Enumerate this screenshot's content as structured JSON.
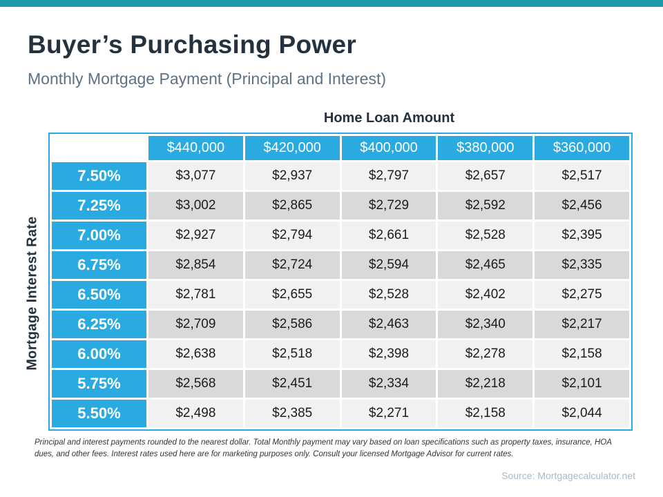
{
  "page": {
    "title": "Buyer’s Purchasing Power",
    "subtitle": "Monthly Mortgage Payment (Principal and Interest)",
    "disclaimer": "Principal and interest payments rounded to the nearest dollar. Total Monthly payment may vary based on loan specifications such as property taxes, insurance, HOA dues, and other fees. Interest rates used here are for marketing purposes only. Consult your licensed Mortgage Advisor for current rates.",
    "source": "Source: Mortgagecalculator.net"
  },
  "chart_data": {
    "type": "table",
    "title": "Home Loan Amount",
    "ylabel": "Mortgage  Interest Rate",
    "columns": [
      "$440,000",
      "$420,000",
      "$400,000",
      "$380,000",
      "$360,000"
    ],
    "rows": [
      {
        "rate": "7.50%",
        "values": [
          "$3,077",
          "$2,937",
          "$2,797",
          "$2,657",
          "$2,517"
        ],
        "green_from": 5
      },
      {
        "rate": "7.25%",
        "values": [
          "$3,002",
          "$2,865",
          "$2,729",
          "$2,592",
          "$2,456"
        ],
        "green_from": 4
      },
      {
        "rate": "7.00%",
        "values": [
          "$2,927",
          "$2,794",
          "$2,661",
          "$2,528",
          "$2,395"
        ],
        "green_from": 4
      },
      {
        "rate": "6.75%",
        "values": [
          "$2,854",
          "$2,724",
          "$2,594",
          "$2,465",
          "$2,335"
        ],
        "green_from": 3
      },
      {
        "rate": "6.50%",
        "values": [
          "$2,781",
          "$2,655",
          "$2,528",
          "$2,402",
          "$2,275"
        ],
        "green_from": 3
      },
      {
        "rate": "6.25%",
        "values": [
          "$2,709",
          "$2,586",
          "$2,463",
          "$2,340",
          "$2,217"
        ],
        "green_from": 2
      },
      {
        "rate": "6.00%",
        "values": [
          "$2,638",
          "$2,518",
          "$2,398",
          "$2,278",
          "$2,158"
        ],
        "green_from": 2
      },
      {
        "rate": "5.75%",
        "values": [
          "$2,568",
          "$2,451",
          "$2,334",
          "$2,218",
          "$2,101"
        ],
        "green_from": 1
      },
      {
        "rate": "5.50%",
        "values": [
          "$2,498",
          "$2,385",
          "$2,271",
          "$2,158",
          "$2,044"
        ],
        "green_from": 0
      }
    ]
  },
  "colors": {
    "accent_blue": "#29abe2",
    "highlight_green": "#6fbe45",
    "top_bar_teal": "#1e9baa",
    "title_dark": "#24313f",
    "subtitle_gray_blue": "#5d7183"
  }
}
